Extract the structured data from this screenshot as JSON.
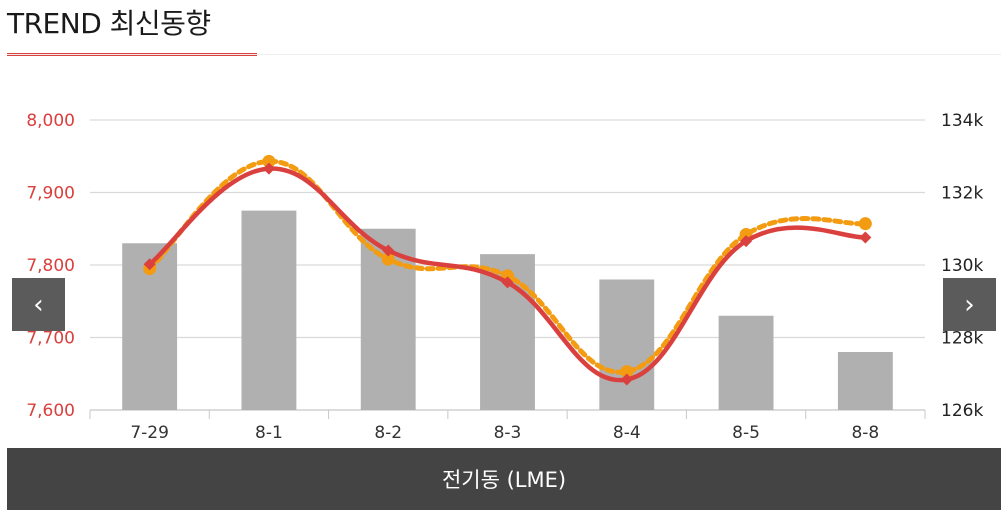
{
  "header": {
    "title": "TREND 최신동향"
  },
  "nav": {
    "prev_glyph": "‹",
    "next_glyph": "›",
    "prev_icon": "chevron-left-icon",
    "next_icon": "chevron-right-icon"
  },
  "caption": {
    "label": "전기동 (LME)"
  },
  "chart_data": {
    "type": "bar",
    "categories": [
      "7-29",
      "8-1",
      "8-2",
      "8-3",
      "8-4",
      "8-5",
      "8-8"
    ],
    "y_left": {
      "ticks": [
        "7,600",
        "7,700",
        "7,800",
        "7,900",
        "8,000"
      ],
      "range": [
        7600,
        8000
      ],
      "color": "#d9403e"
    },
    "y_right": {
      "ticks": [
        "126k",
        "128k",
        "130k",
        "132k",
        "134k"
      ],
      "range": [
        126,
        134
      ]
    },
    "grid": true,
    "series": [
      {
        "kind": "bar",
        "axis": "right",
        "color": "#b0b0b0",
        "values": [
          130.6,
          131.5,
          131.0,
          130.3,
          129.6,
          128.6,
          127.6
        ]
      },
      {
        "kind": "line",
        "style": "dotted",
        "axis": "left",
        "color": "#f39c12",
        "values": [
          7795,
          7943,
          7808,
          7785,
          7653,
          7842,
          7857
        ]
      },
      {
        "kind": "line",
        "style": "solid",
        "axis": "left",
        "color": "#d9403e",
        "values": [
          7801,
          7933,
          7820,
          7776,
          7642,
          7833,
          7838
        ]
      }
    ]
  }
}
